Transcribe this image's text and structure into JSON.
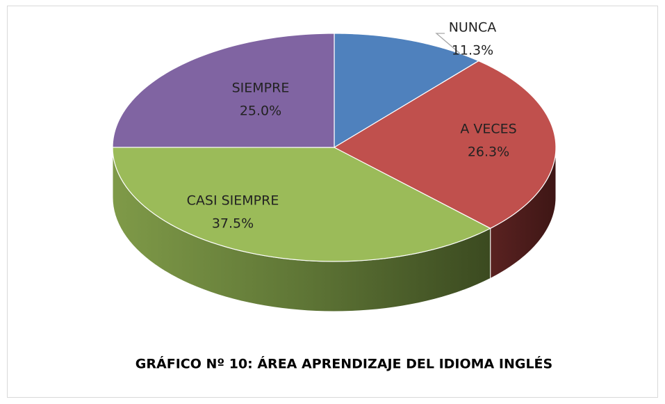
{
  "chart_data": {
    "type": "pie3d",
    "title": "GRÁFICO Nº 10: ÁREA APRENDIZAJE DEL IDIOMA INGLÉS",
    "categories": [
      "NUNCA",
      "A VECES",
      "CASI SIEMPRE",
      "SIEMPRE"
    ],
    "values": [
      11.3,
      26.3,
      37.5,
      25.0
    ],
    "value_labels": [
      "11.3%",
      "26.3%",
      "37.5%",
      "25.0%"
    ],
    "colors": [
      "#4f81bd",
      "#c0504d",
      "#9bbb59",
      "#8064a2"
    ]
  }
}
